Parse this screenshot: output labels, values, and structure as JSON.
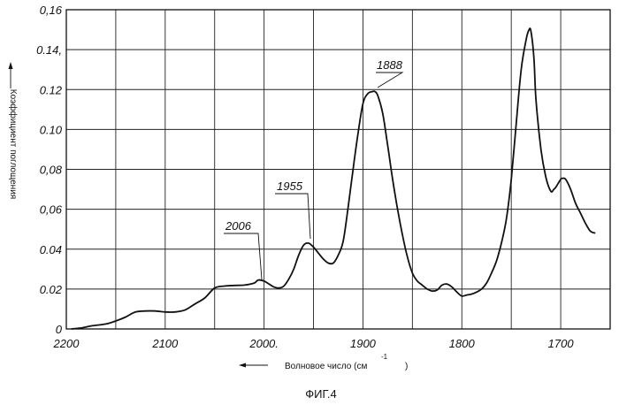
{
  "chart_data": {
    "type": "line",
    "xlabel": "Волновое число (см",
    "xlabel_sup": "-1",
    "xlabel_close": ")",
    "ylabel": "Коэффициент поглощения",
    "xlim": [
      2200,
      1650
    ],
    "x_reversed": true,
    "ylim": [
      0,
      0.16
    ],
    "grid": true,
    "x_ticks": [
      2200,
      2100,
      2000,
      1900,
      1800,
      1700
    ],
    "x_tick_labels": [
      "2200",
      "2100",
      "2000.",
      "1900",
      "1800",
      "1700"
    ],
    "y_ticks": [
      0,
      0.02,
      0.04,
      0.06,
      0.08,
      0.1,
      0.12,
      0.14,
      0.16
    ],
    "y_tick_labels": [
      "0",
      "0.02",
      "0.04",
      "0,06",
      "0,08",
      "0.10",
      "0.12",
      "0.14,",
      "0,16"
    ],
    "series": [
      {
        "x": [
          2195,
          2185,
          2175,
          2160,
          2150,
          2140,
          2130,
          2120,
          2110,
          2100,
          2090,
          2080,
          2070,
          2060,
          2050,
          2040,
          2030,
          2020,
          2010,
          2006,
          2000,
          1995,
          1990,
          1985,
          1980,
          1975,
          1970,
          1965,
          1960,
          1955,
          1950,
          1945,
          1940,
          1935,
          1930,
          1925,
          1920,
          1915,
          1910,
          1905,
          1900,
          1895,
          1890,
          1888,
          1885,
          1880,
          1875,
          1870,
          1865,
          1860,
          1855,
          1850,
          1845,
          1840,
          1835,
          1830,
          1825,
          1820,
          1815,
          1810,
          1805,
          1800,
          1795,
          1790,
          1785,
          1780,
          1775,
          1770,
          1765,
          1760,
          1755,
          1750,
          1745,
          1740,
          1735,
          1732,
          1730,
          1727,
          1725,
          1720,
          1715,
          1710,
          1707,
          1705,
          1700,
          1698,
          1695,
          1690,
          1685,
          1680,
          1675,
          1670,
          1665
        ],
        "y": [
          0,
          0.0005,
          0.0015,
          0.0025,
          0.004,
          0.006,
          0.0085,
          0.009,
          0.009,
          0.0085,
          0.0085,
          0.0095,
          0.0125,
          0.0155,
          0.0205,
          0.0215,
          0.0218,
          0.022,
          0.023,
          0.0245,
          0.024,
          0.0225,
          0.021,
          0.0205,
          0.0215,
          0.025,
          0.03,
          0.037,
          0.042,
          0.043,
          0.041,
          0.038,
          0.035,
          0.033,
          0.033,
          0.037,
          0.044,
          0.061,
          0.08,
          0.098,
          0.113,
          0.118,
          0.119,
          0.119,
          0.117,
          0.108,
          0.092,
          0.075,
          0.06,
          0.047,
          0.036,
          0.028,
          0.024,
          0.022,
          0.02,
          0.019,
          0.0195,
          0.022,
          0.0225,
          0.021,
          0.0185,
          0.0165,
          0.017,
          0.0175,
          0.0185,
          0.02,
          0.023,
          0.028,
          0.034,
          0.043,
          0.055,
          0.075,
          0.103,
          0.13,
          0.145,
          0.15,
          0.149,
          0.135,
          0.115,
          0.09,
          0.076,
          0.069,
          0.07,
          0.071,
          0.075,
          0.0755,
          0.075,
          0.07,
          0.063,
          0.058,
          0.053,
          0.049,
          0.048
        ]
      }
    ],
    "annotations": [
      {
        "text": "1888",
        "x": 1888,
        "y": 0.119
      },
      {
        "text": "1955",
        "x": 1955,
        "y": 0.043
      },
      {
        "text": "2006",
        "x": 2006,
        "y": 0.0245
      }
    ],
    "caption": "ФИГ.4"
  }
}
